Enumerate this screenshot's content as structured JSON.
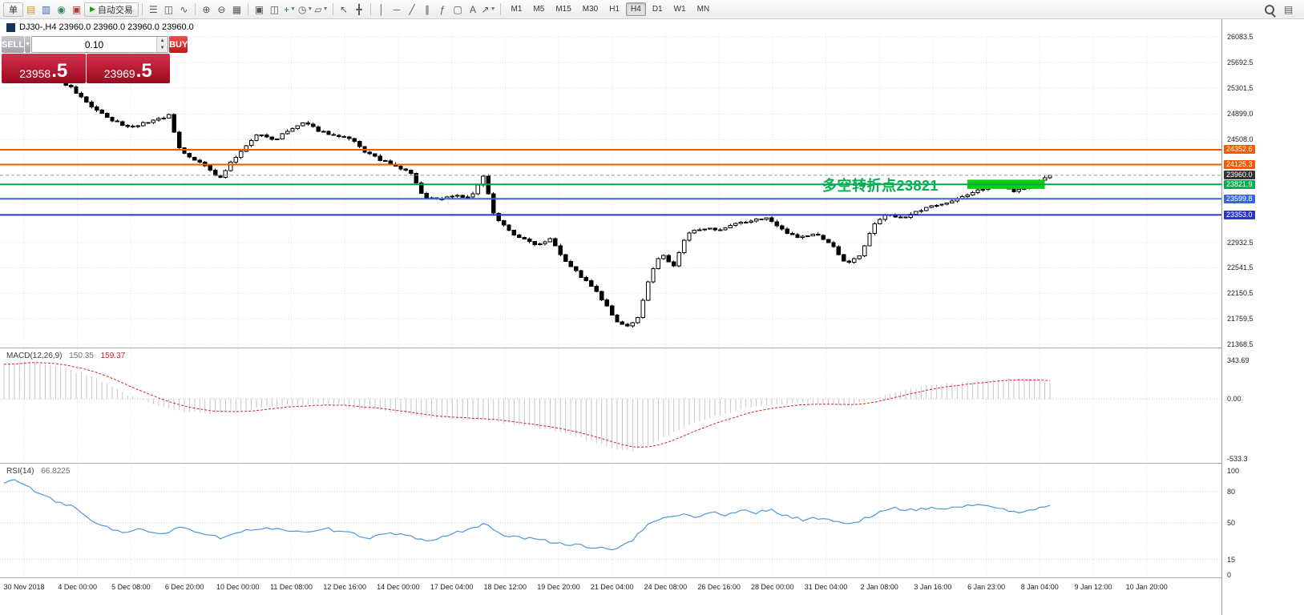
{
  "window": {
    "title_symbol_ohlc": "DJ30-,H4 23960.0 23960.0 23960.0 23960.0"
  },
  "toolbar": {
    "groups": [
      {
        "items": [
          {
            "name": "new-order-button",
            "label": "单",
            "button": true
          },
          {
            "name": "charts-icon",
            "glyph": "▤",
            "color": "#c89b2a"
          },
          {
            "name": "market-watch-icon",
            "glyph": "▥",
            "color": "#3a6ea5"
          },
          {
            "name": "navigator-icon",
            "glyph": "◉",
            "color": "#2e8b57"
          },
          {
            "name": "terminal-icon",
            "glyph": "▣",
            "color": "#b03a3a"
          },
          {
            "name": "autotrade-button",
            "label": "自动交易",
            "button": true,
            "play": true
          }
        ]
      },
      {
        "items": [
          {
            "name": "bar-chart-icon",
            "glyph": "☰"
          },
          {
            "name": "candlestick-chart-icon",
            "glyph": "◫"
          },
          {
            "name": "line-chart-icon",
            "glyph": "∿"
          }
        ]
      },
      {
        "items": [
          {
            "name": "zoom-in-icon",
            "glyph": "⊕"
          },
          {
            "name": "zoom-out-icon",
            "glyph": "⊖"
          },
          {
            "name": "tile-windows-icon",
            "glyph": "▦"
          }
        ]
      },
      {
        "items": [
          {
            "name": "cascade-windows-icon",
            "glyph": "▣"
          },
          {
            "name": "tile-horizontal-icon",
            "glyph": "◫"
          },
          {
            "name": "indicators-add-icon",
            "glyph": "+",
            "color": "#1a8f1a",
            "dropdown": true
          },
          {
            "name": "periods-icon",
            "glyph": "◷",
            "dropdown": true
          },
          {
            "name": "templates-icon",
            "glyph": "▱",
            "dropdown": true
          }
        ]
      },
      {
        "items": [
          {
            "name": "cursor-icon",
            "glyph": "↖"
          },
          {
            "name": "crosshair-icon",
            "glyph": "╋"
          }
        ]
      },
      {
        "items": [
          {
            "name": "vertical-line-icon",
            "glyph": "│"
          },
          {
            "name": "horizontal-line-icon",
            "glyph": "─"
          },
          {
            "name": "trendline-icon",
            "glyph": "╱"
          },
          {
            "name": "channel-icon",
            "glyph": "∥"
          },
          {
            "name": "fibonacci-icon",
            "glyph": "ƒ"
          },
          {
            "name": "shapes-icon",
            "glyph": "▢"
          },
          {
            "name": "text-icon",
            "glyph": "A"
          },
          {
            "name": "arrow-tools-icon",
            "glyph": "↗",
            "dropdown": true
          }
        ]
      }
    ],
    "timeframes": [
      "M1",
      "M5",
      "M15",
      "M30",
      "H1",
      "H4",
      "D1",
      "W1",
      "MN"
    ],
    "active_timeframe": "H4",
    "right_icons": [
      {
        "name": "search-icon",
        "glyph": "mag"
      },
      {
        "name": "new-chart-icon",
        "glyph": "▤"
      }
    ]
  },
  "trade_panel": {
    "sell_label": "SELL",
    "buy_label": "BUY",
    "volume": "0.10",
    "sell_price_main": "23958",
    "sell_price_pips": ".5",
    "buy_price_main": "23969",
    "buy_price_pips": ".5"
  },
  "annotation": {
    "text": "多空转折点23821",
    "color": "#00B050"
  },
  "hlines": [
    {
      "price": 24352.6,
      "label": "24352.6",
      "line_color": "#f25a05",
      "badge_color": "#f25a05",
      "style": "solid"
    },
    {
      "price": 24125.3,
      "label": "24125.3",
      "line_color": "#f25a05",
      "badge_color": "#f25a05",
      "style": "solid"
    },
    {
      "price": 23960.0,
      "label": "23960.0",
      "line_color": "#999999",
      "badge_color": "#333333",
      "style": "current"
    },
    {
      "price": 23821.9,
      "label": "23821.9",
      "line_color": "#00A651",
      "badge_color": "#00B050",
      "style": "solid"
    },
    {
      "price": 23599.8,
      "label": "23599.8",
      "line_color": "#3A66DB",
      "badge_color": "#3A66DB",
      "style": "solid"
    },
    {
      "price": 23353.0,
      "label": "23353.0",
      "line_color": "#2B35CE",
      "badge_color": "#2B35CE",
      "style": "solid"
    }
  ],
  "chart_data": {
    "type": "candlestick",
    "symbol": "DJ30-",
    "period": "H4",
    "price_range": {
      "max": 26083.5,
      "min": 21368.5
    },
    "price_axis_values": [
      26083.5,
      25692.5,
      25301.5,
      24899.0,
      24508.0,
      22932.5,
      22541.5,
      22150.5,
      21759.5,
      21368.5
    ],
    "time_axis": [
      "30 Nov 2018",
      "4 Dec 00:00",
      "5 Dec 08:00",
      "6 Dec 20:00",
      "10 Dec 00:00",
      "11 Dec 08:00",
      "12 Dec 16:00",
      "14 Dec 00:00",
      "17 Dec 04:00",
      "18 Dec 12:00",
      "19 Dec 20:00",
      "21 Dec 04:00",
      "24 Dec 08:00",
      "26 Dec 16:00",
      "28 Dec 00:00",
      "31 Dec 04:00",
      "2 Jan 08:00",
      "3 Jan 16:00",
      "6 Jan 23:00",
      "8 Jan 04:00",
      "9 Jan 12:00",
      "10 Jan 20:00"
    ],
    "candles": 204,
    "last_close": 23960.0,
    "price_path": [
      [
        0.0,
        25550
      ],
      [
        0.023,
        25620
      ],
      [
        0.046,
        25480
      ],
      [
        0.064,
        25300
      ],
      [
        0.08,
        25060
      ],
      [
        0.1,
        24820
      ],
      [
        0.119,
        24700
      ],
      [
        0.138,
        24780
      ],
      [
        0.158,
        24880
      ],
      [
        0.166,
        24420
      ],
      [
        0.176,
        24250
      ],
      [
        0.194,
        24100
      ],
      [
        0.205,
        23880
      ],
      [
        0.216,
        24150
      ],
      [
        0.23,
        24380
      ],
      [
        0.243,
        24600
      ],
      [
        0.258,
        24500
      ],
      [
        0.274,
        24660
      ],
      [
        0.286,
        24760
      ],
      [
        0.301,
        24650
      ],
      [
        0.317,
        24560
      ],
      [
        0.332,
        24510
      ],
      [
        0.343,
        24340
      ],
      [
        0.358,
        24210
      ],
      [
        0.373,
        24100
      ],
      [
        0.389,
        24000
      ],
      [
        0.4,
        23640
      ],
      [
        0.415,
        23590
      ],
      [
        0.431,
        23660
      ],
      [
        0.446,
        23610
      ],
      [
        0.458,
        23940
      ],
      [
        0.469,
        23340
      ],
      [
        0.484,
        23090
      ],
      [
        0.5,
        22950
      ],
      [
        0.511,
        22900
      ],
      [
        0.523,
        23010
      ],
      [
        0.534,
        22700
      ],
      [
        0.549,
        22450
      ],
      [
        0.565,
        22200
      ],
      [
        0.576,
        21950
      ],
      [
        0.586,
        21700
      ],
      [
        0.595,
        21640
      ],
      [
        0.607,
        21780
      ],
      [
        0.617,
        22420
      ],
      [
        0.628,
        22760
      ],
      [
        0.64,
        22560
      ],
      [
        0.653,
        23060
      ],
      [
        0.668,
        23160
      ],
      [
        0.683,
        23100
      ],
      [
        0.699,
        23210
      ],
      [
        0.714,
        23260
      ],
      [
        0.729,
        23310
      ],
      [
        0.745,
        23110
      ],
      [
        0.76,
        23010
      ],
      [
        0.776,
        23060
      ],
      [
        0.791,
        22910
      ],
      [
        0.804,
        22610
      ],
      [
        0.818,
        22720
      ],
      [
        0.831,
        23210
      ],
      [
        0.844,
        23360
      ],
      [
        0.86,
        23310
      ],
      [
        0.875,
        23410
      ],
      [
        0.89,
        23510
      ],
      [
        0.906,
        23560
      ],
      [
        0.921,
        23660
      ],
      [
        0.936,
        23760
      ],
      [
        0.952,
        23790
      ],
      [
        0.967,
        23720
      ],
      [
        0.982,
        23810
      ],
      [
        0.996,
        23930
      ],
      [
        1.0,
        23960
      ]
    ],
    "highlight_box": {
      "x_frac_start": 0.921,
      "x_frac_end": 0.995,
      "price_top": 23893,
      "price_bottom": 23752,
      "color": "#0ACF0A"
    },
    "indicators": [
      {
        "name": "MACD",
        "title": "MACD(12,26,9)",
        "values": [
          "150.35",
          "159.37"
        ],
        "axis_labels": [
          "343.69",
          "0.00",
          "-533.3"
        ],
        "max": 343.69,
        "min": -533.3,
        "path": [
          [
            0.0,
            310
          ],
          [
            0.02,
            335
          ],
          [
            0.05,
            300
          ],
          [
            0.08,
            215
          ],
          [
            0.1,
            130
          ],
          [
            0.12,
            30
          ],
          [
            0.14,
            -40
          ],
          [
            0.17,
            -110
          ],
          [
            0.2,
            -135
          ],
          [
            0.23,
            -100
          ],
          [
            0.26,
            -60
          ],
          [
            0.29,
            -45
          ],
          [
            0.32,
            -60
          ],
          [
            0.35,
            -90
          ],
          [
            0.38,
            -130
          ],
          [
            0.41,
            -170
          ],
          [
            0.44,
            -175
          ],
          [
            0.47,
            -200
          ],
          [
            0.5,
            -240
          ],
          [
            0.53,
            -290
          ],
          [
            0.56,
            -370
          ],
          [
            0.585,
            -450
          ],
          [
            0.6,
            -470
          ],
          [
            0.62,
            -390
          ],
          [
            0.64,
            -300
          ],
          [
            0.66,
            -210
          ],
          [
            0.68,
            -150
          ],
          [
            0.7,
            -100
          ],
          [
            0.72,
            -70
          ],
          [
            0.74,
            -45
          ],
          [
            0.76,
            -35
          ],
          [
            0.78,
            -45
          ],
          [
            0.8,
            -60
          ],
          [
            0.82,
            -35
          ],
          [
            0.84,
            25
          ],
          [
            0.86,
            75
          ],
          [
            0.88,
            110
          ],
          [
            0.9,
            130
          ],
          [
            0.92,
            150
          ],
          [
            0.94,
            168
          ],
          [
            0.96,
            180
          ],
          [
            0.98,
            168
          ],
          [
            1.0,
            150.35
          ]
        ]
      },
      {
        "name": "RSI",
        "title": "RSI(14)",
        "values": [
          "66.8225"
        ],
        "axis_labels": [
          "100",
          "80",
          "50",
          "15",
          "0"
        ],
        "axis_values": [
          100,
          80,
          50,
          15,
          0
        ],
        "levels": [
          80,
          50,
          15
        ],
        "path": [
          [
            0.0,
            88
          ],
          [
            0.012,
            92
          ],
          [
            0.03,
            80
          ],
          [
            0.05,
            70
          ],
          [
            0.065,
            66
          ],
          [
            0.08,
            55
          ],
          [
            0.1,
            45
          ],
          [
            0.115,
            40
          ],
          [
            0.13,
            44
          ],
          [
            0.15,
            38
          ],
          [
            0.17,
            46
          ],
          [
            0.19,
            40
          ],
          [
            0.21,
            35
          ],
          [
            0.23,
            42
          ],
          [
            0.25,
            46
          ],
          [
            0.27,
            43
          ],
          [
            0.29,
            40
          ],
          [
            0.31,
            44
          ],
          [
            0.33,
            40
          ],
          [
            0.35,
            36
          ],
          [
            0.37,
            40
          ],
          [
            0.39,
            36
          ],
          [
            0.41,
            33
          ],
          [
            0.43,
            40
          ],
          [
            0.45,
            46
          ],
          [
            0.46,
            50
          ],
          [
            0.47,
            40
          ],
          [
            0.49,
            36
          ],
          [
            0.51,
            34
          ],
          [
            0.53,
            31
          ],
          [
            0.55,
            28
          ],
          [
            0.57,
            26
          ],
          [
            0.585,
            25
          ],
          [
            0.6,
            32
          ],
          [
            0.615,
            48
          ],
          [
            0.63,
            55
          ],
          [
            0.645,
            58
          ],
          [
            0.66,
            56
          ],
          [
            0.675,
            60
          ],
          [
            0.69,
            58
          ],
          [
            0.705,
            62
          ],
          [
            0.72,
            60
          ],
          [
            0.735,
            62
          ],
          [
            0.75,
            56
          ],
          [
            0.765,
            53
          ],
          [
            0.78,
            55
          ],
          [
            0.795,
            52
          ],
          [
            0.81,
            48
          ],
          [
            0.825,
            55
          ],
          [
            0.84,
            62
          ],
          [
            0.855,
            64
          ],
          [
            0.87,
            62
          ],
          [
            0.885,
            65
          ],
          [
            0.9,
            63
          ],
          [
            0.915,
            66
          ],
          [
            0.93,
            68
          ],
          [
            0.945,
            65
          ],
          [
            0.96,
            62
          ],
          [
            0.975,
            60
          ],
          [
            0.99,
            64
          ],
          [
            1.0,
            66.82
          ]
        ]
      }
    ]
  }
}
